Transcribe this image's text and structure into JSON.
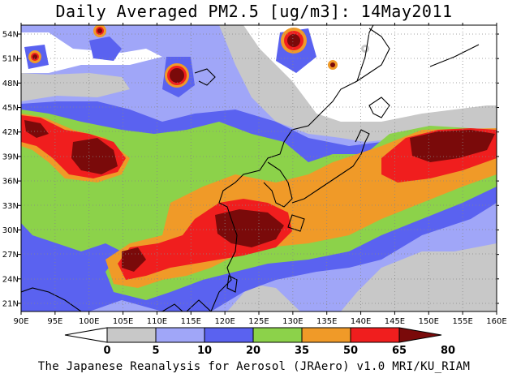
{
  "title": "Daily Averaged PM2.5 [ug/m3]: 14May2011",
  "credit": "The Japanese Reanalysis for Aerosol (JRAero) v1.0 MRI/KU_RIAM",
  "lon_labels": [
    "90E",
    "95E",
    "100E",
    "105E",
    "110E",
    "115E",
    "120E",
    "125E",
    "130E",
    "135E",
    "140E",
    "145E",
    "150E",
    "155E",
    "160E"
  ],
  "lat_labels": [
    "54N",
    "51N",
    "48N",
    "45N",
    "42N",
    "39N",
    "36N",
    "33N",
    "30N",
    "27N",
    "24N",
    "21N"
  ],
  "colorbar": {
    "levels": [
      "0",
      "5",
      "10",
      "20",
      "35",
      "50",
      "65",
      "80"
    ],
    "colors": [
      "#ffffff",
      "#c8c8c8",
      "#a0a6f8",
      "#5a62f0",
      "#8cd24a",
      "#f09a28",
      "#f01e1e",
      "#7a0a0a"
    ]
  },
  "colors": {
    "lt5": "#ffffff",
    "c5_10": "#c8c8c8",
    "c10_20": "#a0a6f8",
    "c20_35": "#5a62f0",
    "c35_50": "#8cd24a",
    "c50_65": "#f09a28",
    "c65_80": "#f01e1e",
    "gt80": "#7a0a0a"
  }
}
